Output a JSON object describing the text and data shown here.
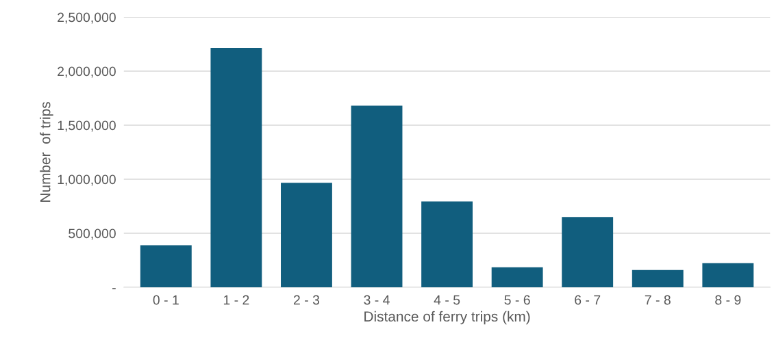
{
  "chart_data": {
    "type": "bar",
    "xlabel": "Distance of ferry trips (km)",
    "ylabel": "Number  of trips",
    "categories": [
      "0 - 1",
      "1 - 2",
      "2 - 3",
      "3 - 4",
      "4 - 5",
      "5 - 6",
      "6 - 7",
      "7 - 8",
      "8 - 9"
    ],
    "values": [
      390000,
      2215000,
      967000,
      1680000,
      795000,
      185000,
      650000,
      160000,
      223000
    ],
    "color": "#115e7e",
    "ylim": [
      0,
      2500000
    ],
    "yticks": [
      {
        "value": 0,
        "label": "-"
      },
      {
        "value": 500000,
        "label": "500,000"
      },
      {
        "value": 1000000,
        "label": "1,000,000"
      },
      {
        "value": 1500000,
        "label": "1,500,000"
      },
      {
        "value": 2000000,
        "label": "2,000,000"
      },
      {
        "value": 2500000,
        "label": "2,500,000"
      }
    ],
    "grid": "y",
    "legend": false
  }
}
